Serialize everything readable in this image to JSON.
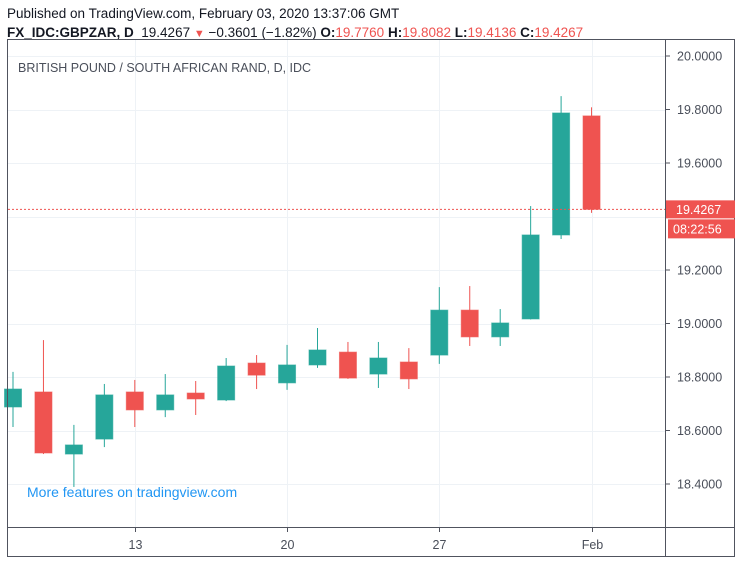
{
  "header": {
    "published": "Published on TradingView.com, February 03, 2020 13:37:06 GMT",
    "symbol": "FX_IDC:GBPZAR, D",
    "last": "19.4267",
    "change": "−0.3601 (−1.82%)",
    "o_label": "O:",
    "o": "19.7760",
    "h_label": "H:",
    "h": "19.8082",
    "l_label": "L:",
    "l": "19.4136",
    "c_label": "C:",
    "c": "19.4267"
  },
  "pane_title": "BRITISH POUND / SOUTH AFRICAN RAND, D, IDC",
  "watermark": "More features on tradingview.com",
  "price_label": "19.4267",
  "countdown": "08:22:56",
  "colors": {
    "up": "#26a69a",
    "down": "#ef5350",
    "link": "#2196f3"
  },
  "chart_data": {
    "type": "candlestick",
    "y_ticks": [
      "20.0000",
      "19.8000",
      "19.6000",
      "19.2000",
      "19.0000",
      "18.8000",
      "18.6000",
      "18.4000"
    ],
    "x_ticks": [
      "13",
      "20",
      "27",
      "Feb"
    ],
    "ylim": [
      18.24,
      20.02
    ],
    "grid": true,
    "candles": [
      {
        "date": "Jan 7",
        "o": 18.688,
        "h": 18.819,
        "l": 18.613,
        "c": 18.755
      },
      {
        "date": "Jan 8",
        "o": 18.744,
        "h": 18.938,
        "l": 18.512,
        "c": 18.516
      },
      {
        "date": "Jan 9",
        "o": 18.512,
        "h": 18.621,
        "l": 18.389,
        "c": 18.546
      },
      {
        "date": "Jan 10",
        "o": 18.568,
        "h": 18.774,
        "l": 18.538,
        "c": 18.733
      },
      {
        "date": "Jan 13",
        "o": 18.744,
        "h": 18.789,
        "l": 18.613,
        "c": 18.677
      },
      {
        "date": "Jan 14",
        "o": 18.677,
        "h": 18.811,
        "l": 18.65,
        "c": 18.733
      },
      {
        "date": "Jan 15",
        "o": 18.74,
        "h": 18.785,
        "l": 18.658,
        "c": 18.718
      },
      {
        "date": "Jan 16",
        "o": 18.714,
        "h": 18.871,
        "l": 18.71,
        "c": 18.841
      },
      {
        "date": "Jan 17",
        "o": 18.852,
        "h": 18.882,
        "l": 18.755,
        "c": 18.807
      },
      {
        "date": "Jan 20",
        "o": 18.778,
        "h": 18.92,
        "l": 18.752,
        "c": 18.845
      },
      {
        "date": "Jan 21",
        "o": 18.845,
        "h": 18.983,
        "l": 18.834,
        "c": 18.901
      },
      {
        "date": "Jan 22",
        "o": 18.893,
        "h": 18.931,
        "l": 18.793,
        "c": 18.796
      },
      {
        "date": "Jan 23",
        "o": 18.811,
        "h": 18.931,
        "l": 18.759,
        "c": 18.871
      },
      {
        "date": "Jan 24",
        "o": 18.856,
        "h": 18.908,
        "l": 18.755,
        "c": 18.793
      },
      {
        "date": "Jan 27",
        "o": 18.882,
        "h": 19.136,
        "l": 18.849,
        "c": 19.05
      },
      {
        "date": "Jan 28",
        "o": 19.05,
        "h": 19.14,
        "l": 18.916,
        "c": 18.95
      },
      {
        "date": "Jan 29",
        "o": 18.95,
        "h": 19.054,
        "l": 18.916,
        "c": 19.002
      },
      {
        "date": "Jan 30",
        "o": 19.017,
        "h": 19.439,
        "l": 19.015,
        "c": 19.331
      },
      {
        "date": "Jan 31",
        "o": 19.331,
        "h": 19.85,
        "l": 19.316,
        "c": 19.787
      },
      {
        "date": "Feb 3",
        "o": 19.776,
        "h": 19.8082,
        "l": 19.4136,
        "c": 19.4267
      }
    ],
    "last_price": 19.4267
  }
}
